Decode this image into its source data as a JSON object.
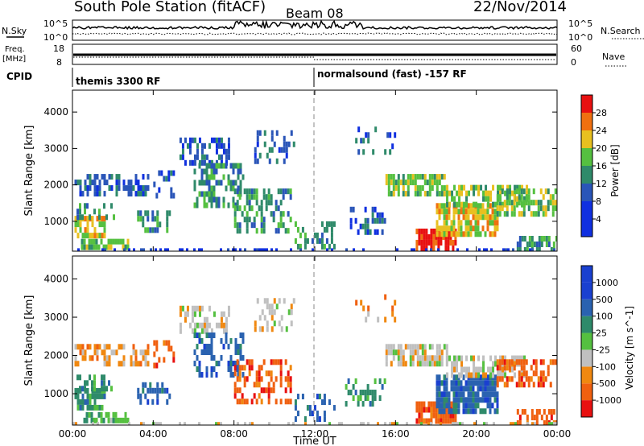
{
  "header": {
    "station": "South Pole Station (fitACF)",
    "beam": "Beam 08",
    "date": "22/Nov/2014"
  },
  "status_panel": {
    "left_noise_label": "N.Sky",
    "right_noise_label": "N.Search",
    "noise_ticks_left": [
      "10^5",
      "10^0"
    ],
    "noise_ticks_right": [
      "10^5",
      "10^0"
    ],
    "freq_label_1": "Freq.",
    "freq_label_2": "[MHz]",
    "freq_ticks": [
      "18",
      "8"
    ],
    "nave_label": "Nave",
    "nave_ticks": [
      "60",
      "0"
    ],
    "cpid_label": "CPID",
    "cpid_segments": [
      {
        "start_hour": 0,
        "label": "themis 3300 RF"
      },
      {
        "start_hour": 12,
        "label": "normalsound (fast) -157 RF"
      }
    ]
  },
  "chart_data": [
    {
      "type": "heatmap",
      "name": "power",
      "ylabel": "Slant Range [km]",
      "yticks": [
        "1000",
        "2000",
        "3000",
        "4000"
      ],
      "ylim": [
        180,
        4600
      ],
      "xlim": [
        0,
        24
      ],
      "colorbar": {
        "label": "Power [dB]",
        "ticks": [
          "4",
          "8",
          "12",
          "16",
          "20",
          "24",
          "28"
        ],
        "range": [
          0,
          32
        ],
        "colors": [
          "#1030e0",
          "#2a55b8",
          "#2f8a6a",
          "#55c040",
          "#e8c020",
          "#f07010",
          "#e81010"
        ]
      }
    },
    {
      "type": "heatmap",
      "name": "velocity",
      "ylabel": "Slant Range [km]",
      "yticks": [
        "1000",
        "2000",
        "3000",
        "4000"
      ],
      "ylim": [
        180,
        4600
      ],
      "xlim": [
        0,
        24
      ],
      "xlabel": "Time UT",
      "xticks": [
        "00:00",
        "04:00",
        "08:00",
        "12:00",
        "16:00",
        "20:00",
        "00:00"
      ],
      "colorbar": {
        "label": "Velocity [m s^-1]",
        "ticks": [
          "1000",
          "500",
          "100",
          "25",
          "-25",
          "-100",
          "-500",
          "-1000"
        ],
        "colors": [
          "#1a40d0",
          "#2a62b0",
          "#2e8a6a",
          "#55c040",
          "#c0c0c0",
          "#f08810",
          "#f06010",
          "#e81010"
        ]
      }
    }
  ],
  "patches": [
    {
      "t": [
        0.1,
        3.8
      ],
      "r": [
        1800,
        2300
      ],
      "pw": 1,
      "v": 5,
      "d": 0.55
    },
    {
      "t": [
        0.1,
        1.6
      ],
      "r": [
        650,
        1150
      ],
      "pw": 4,
      "v": 2,
      "d": 0.75
    },
    {
      "t": [
        0.2,
        2.2
      ],
      "r": [
        1100,
        1500
      ],
      "pw": 2,
      "v": 2,
      "d": 0.45
    },
    {
      "t": [
        0.3,
        2.8
      ],
      "r": [
        250,
        520
      ],
      "pw": 3,
      "v": 3,
      "d": 0.55
    },
    {
      "t": [
        3.2,
        4.8
      ],
      "r": [
        800,
        1300
      ],
      "pw": 2,
      "v": 1,
      "d": 0.5
    },
    {
      "t": [
        4.0,
        5.0
      ],
      "r": [
        1700,
        2400
      ],
      "pw": 1,
      "v": 6,
      "d": 0.35
    },
    {
      "t": [
        5.3,
        7.8
      ],
      "r": [
        2600,
        3300
      ],
      "pw": 1,
      "v": 4,
      "d": 0.5
    },
    {
      "t": [
        6.0,
        8.5
      ],
      "r": [
        1500,
        2600
      ],
      "pw": 2,
      "v": 1,
      "d": 0.45
    },
    {
      "t": [
        8.0,
        10.8
      ],
      "r": [
        800,
        1900
      ],
      "pw": 2,
      "v": 6,
      "d": 0.45
    },
    {
      "t": [
        9.0,
        11.0
      ],
      "r": [
        2700,
        3500
      ],
      "pw": 1,
      "v": 4,
      "d": 0.35
    },
    {
      "t": [
        11.0,
        13.0
      ],
      "r": [
        350,
        1000
      ],
      "pw": 2,
      "v": 1,
      "d": 0.35
    },
    {
      "t": [
        13.5,
        15.5
      ],
      "r": [
        700,
        1400
      ],
      "pw": 1,
      "v": 2,
      "d": 0.3
    },
    {
      "t": [
        15.5,
        18.5
      ],
      "r": [
        1800,
        2300
      ],
      "pw": 3,
      "v": 4,
      "d": 0.75
    },
    {
      "t": [
        17.0,
        19.0
      ],
      "r": [
        300,
        800
      ],
      "pw": 6,
      "v": 6,
      "d": 0.85
    },
    {
      "t": [
        18.0,
        21.0
      ],
      "r": [
        600,
        1500
      ],
      "pw": 4,
      "v": 1,
      "d": 0.8
    },
    {
      "t": [
        18.5,
        22.5
      ],
      "r": [
        1500,
        2000
      ],
      "pw": 3,
      "v": 4,
      "d": 0.6
    },
    {
      "t": [
        21.0,
        24.0
      ],
      "r": [
        1200,
        1900
      ],
      "pw": 3,
      "v": 6,
      "d": 0.6
    },
    {
      "t": [
        22.0,
        24.0
      ],
      "r": [
        250,
        600
      ],
      "pw": 2,
      "v": 6,
      "d": 0.5
    },
    {
      "t": [
        0.0,
        24.0
      ],
      "r": [
        200,
        260
      ],
      "pw": 0,
      "v": 4,
      "d": 0.3
    },
    {
      "t": [
        14.0,
        16.0
      ],
      "r": [
        2900,
        3600
      ],
      "pw": 1,
      "v": 5,
      "d": 0.15
    }
  ]
}
